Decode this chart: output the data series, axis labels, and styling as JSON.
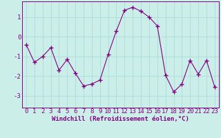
{
  "x": [
    0,
    1,
    2,
    3,
    4,
    5,
    6,
    7,
    8,
    9,
    10,
    11,
    12,
    13,
    14,
    15,
    16,
    17,
    18,
    19,
    20,
    21,
    22,
    23
  ],
  "y": [
    -0.4,
    -1.3,
    -1.0,
    -0.55,
    -1.7,
    -1.15,
    -1.85,
    -2.5,
    -2.4,
    -2.2,
    -0.9,
    0.3,
    1.35,
    1.5,
    1.3,
    1.0,
    0.55,
    -1.95,
    -2.8,
    -2.4,
    -1.2,
    -1.9,
    -1.2,
    -2.55
  ],
  "line_color": "#800080",
  "marker": "+",
  "marker_size": 4,
  "marker_lw": 1.0,
  "line_width": 0.8,
  "bg_color": "#cceee8",
  "grid_color": "#aaddda",
  "xlabel": "Windchill (Refroidissement éolien,°C)",
  "xlabel_fontsize": 6.5,
  "tick_fontsize": 6.5,
  "ylim": [
    -3.6,
    1.8
  ],
  "xlim": [
    -0.5,
    23.5
  ],
  "yticks": [
    -3,
    -2,
    -1,
    0,
    1
  ],
  "xticks": [
    0,
    1,
    2,
    3,
    4,
    5,
    6,
    7,
    8,
    9,
    10,
    11,
    12,
    13,
    14,
    15,
    16,
    17,
    18,
    19,
    20,
    21,
    22,
    23
  ]
}
